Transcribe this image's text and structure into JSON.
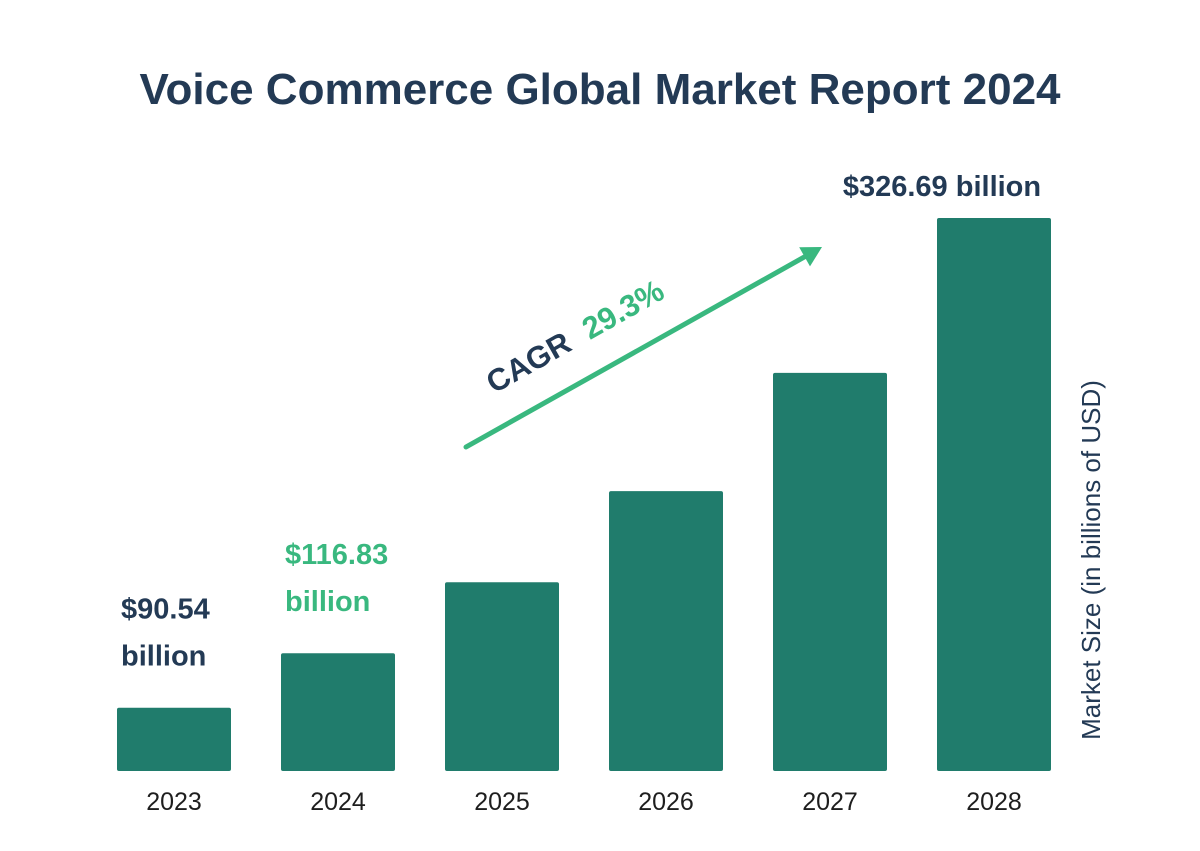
{
  "colors": {
    "bar": "#207c6c",
    "title": "#233a55",
    "accent": "#39b87f",
    "axis_text": "#1e1e1e",
    "ylabel": "#233a55"
  },
  "chart_data": {
    "type": "bar",
    "title": "Voice Commerce Global Market Report 2024",
    "xlabel": "",
    "ylabel": "Market Size (in billions of USD)",
    "categories": [
      "2023",
      "2024",
      "2025",
      "2026",
      "2027",
      "2028"
    ],
    "values": [
      90.54,
      116.83,
      151.0,
      195.0,
      252.0,
      326.69
    ],
    "ylim": [
      60,
      350
    ],
    "grid": false,
    "legend": "none",
    "data_labels": [
      {
        "index": 0,
        "lines": [
          "$90.54",
          "billion"
        ],
        "color": "title"
      },
      {
        "index": 1,
        "lines": [
          "$116.83",
          "billion"
        ],
        "color": "accent"
      },
      {
        "index": 5,
        "lines": [
          "$326.69 billion"
        ],
        "color": "title"
      }
    ],
    "annotation": {
      "label": "CAGR",
      "value": "29.3%"
    }
  }
}
